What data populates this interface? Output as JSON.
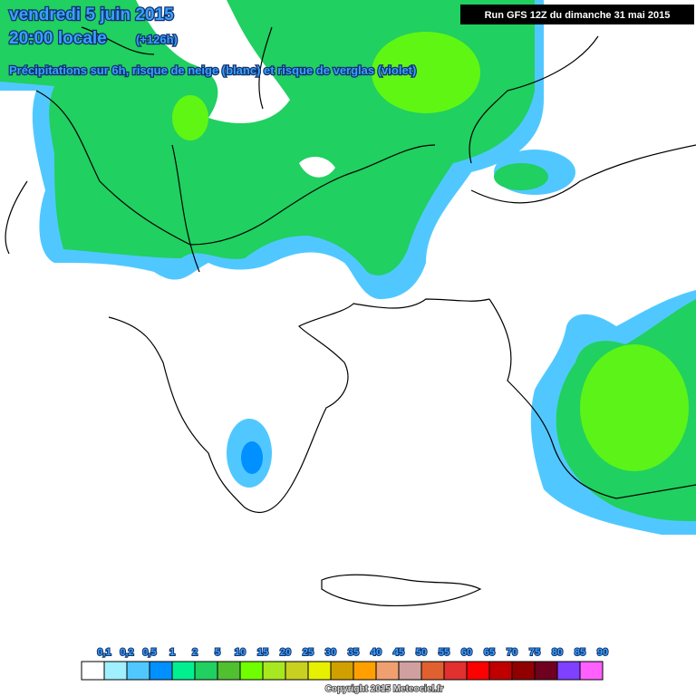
{
  "header": {
    "date": "vendredi 5 juin 2015",
    "time": "20:00 locale",
    "lead": "(+126h)",
    "subtitle": "Précipitations sur 6h, risque de neige (blanc) et risque de verglas (violet)",
    "run": "Run GFS 12Z du dimanche 31 mai 2015"
  },
  "legend": {
    "labels": [
      "0,1",
      "0,2",
      "0,5",
      "1",
      "2",
      "5",
      "10",
      "15",
      "20",
      "25",
      "30",
      "35",
      "40",
      "45",
      "50",
      "55",
      "60",
      "65",
      "70",
      "75",
      "80",
      "85",
      "90"
    ],
    "colors": [
      "#ffffff",
      "#a0f0ff",
      "#50c8ff",
      "#0090ff",
      "#00f090",
      "#20d060",
      "#50c030",
      "#70ff00",
      "#a8e820",
      "#c8d020",
      "#e6f000",
      "#d0a000",
      "#ffa000",
      "#f0a070",
      "#d0a0a0",
      "#e06030",
      "#e03030",
      "#ff0000",
      "#c00000",
      "#900000",
      "#700020",
      "#8040ff",
      "#ff60ff"
    ]
  },
  "footer": {
    "copyright": "Copyright 2015 Meteociel.fr"
  }
}
